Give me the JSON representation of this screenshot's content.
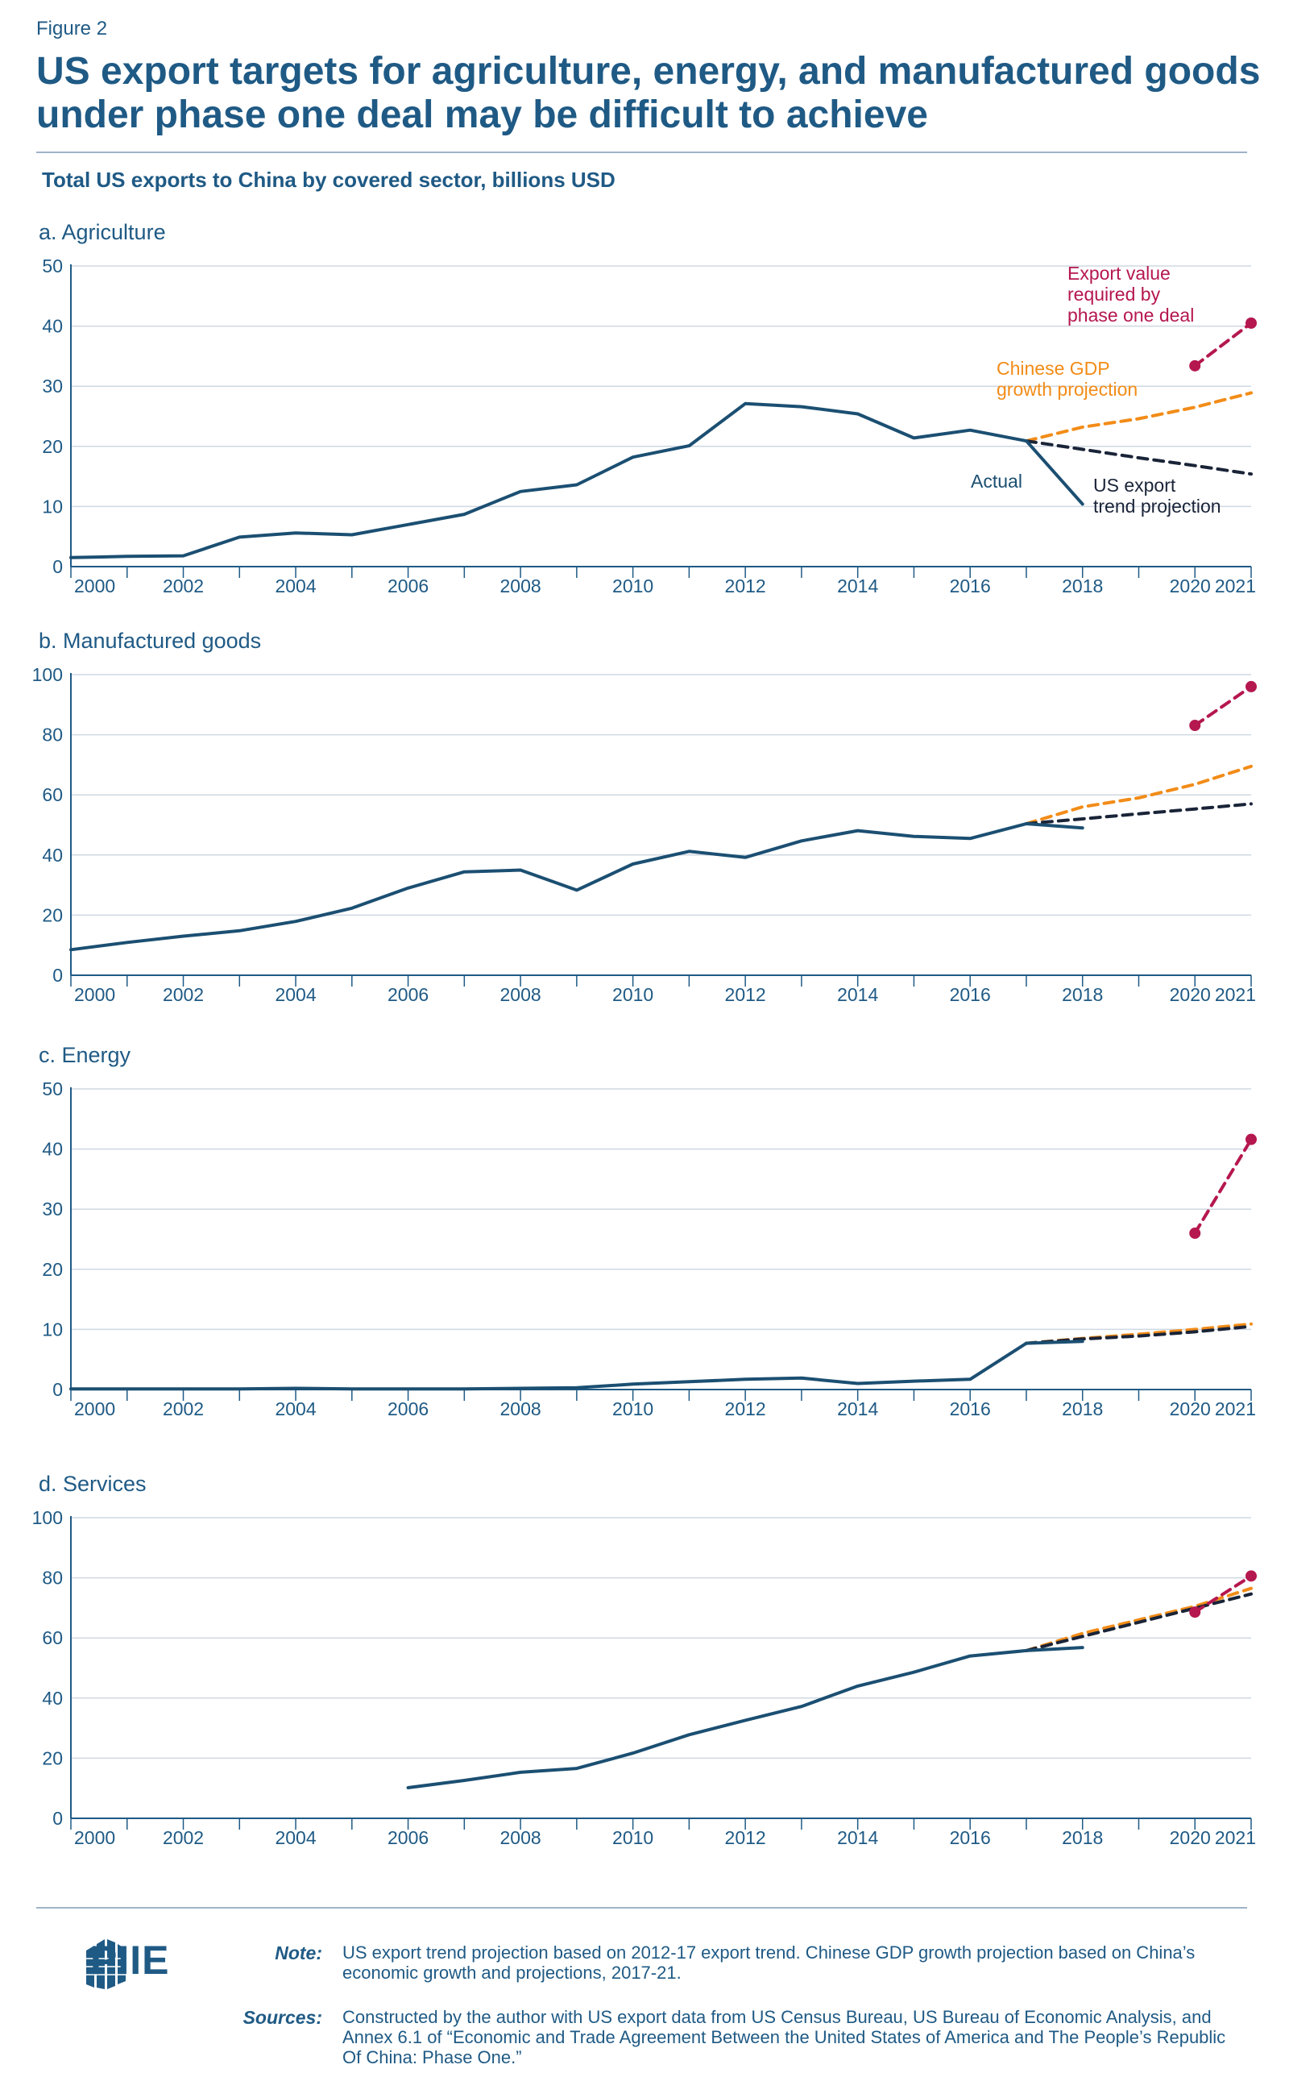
{
  "figure_label": "Figure 2",
  "title": "US export targets for agriculture, energy, and manufactured goods under phase one deal may be difficult to achieve",
  "subtitle": "Total US exports to China by covered sector, billions USD",
  "colors": {
    "actual": "#1b4f72",
    "gdp": "#f28c18",
    "trend": "#1a2438",
    "required": "#b5174f",
    "axis": "#1f5a85",
    "grid": "#cfd8e2"
  },
  "annotations": {
    "required_line1": "Export value",
    "required_line2": "required by",
    "required_line3": "phase one deal",
    "gdp_line1": "Chinese GDP",
    "gdp_line2": "growth projection",
    "actual": "Actual",
    "trend_line1": "US export",
    "trend_line2": "trend projection"
  },
  "chart_data": [
    {
      "type": "line",
      "panel": "a. Agriculture",
      "title": "a. Agriculture",
      "ylim": [
        0,
        50
      ],
      "yticks": [
        0,
        10,
        20,
        30,
        40,
        50
      ],
      "xlim": [
        2000,
        2021
      ],
      "xticks": [
        "2000",
        "2002",
        "2004",
        "2006",
        "2008",
        "2010",
        "2012",
        "2014",
        "2016",
        "2018",
        "2020",
        "2021"
      ],
      "series": [
        {
          "name": "Actual",
          "x": [
            2000,
            2001,
            2002,
            2003,
            2004,
            2005,
            2006,
            2007,
            2008,
            2009,
            2010,
            2011,
            2012,
            2013,
            2014,
            2015,
            2016,
            2017,
            2018
          ],
          "values": [
            1.5,
            1.7,
            1.8,
            4.9,
            5.6,
            5.3,
            7.0,
            8.7,
            12.5,
            13.6,
            18.2,
            20.1,
            27.1,
            26.6,
            25.4,
            21.4,
            22.7,
            20.9,
            10.4
          ]
        },
        {
          "name": "Chinese GDP growth projection",
          "x": [
            2017,
            2018,
            2019,
            2020,
            2021
          ],
          "values": [
            20.9,
            23.2,
            24.6,
            26.5,
            28.9
          ]
        },
        {
          "name": "US export trend projection",
          "x": [
            2017,
            2018,
            2019,
            2020,
            2021
          ],
          "values": [
            20.9,
            19.5,
            18.1,
            16.8,
            15.4
          ]
        },
        {
          "name": "Export value required by phase one deal",
          "x": [
            2020,
            2021
          ],
          "values": [
            33.4,
            40.5
          ]
        }
      ]
    },
    {
      "type": "line",
      "panel": "b. Manufactured goods",
      "title": "b. Manufactured goods",
      "ylim": [
        0,
        100
      ],
      "yticks": [
        0,
        20,
        40,
        60,
        80,
        100
      ],
      "xlim": [
        2000,
        2021
      ],
      "xticks": [
        "2000",
        "2002",
        "2004",
        "2006",
        "2008",
        "2010",
        "2012",
        "2014",
        "2016",
        "2018",
        "2020",
        "2021"
      ],
      "series": [
        {
          "name": "Actual",
          "x": [
            2000,
            2001,
            2002,
            2003,
            2004,
            2005,
            2006,
            2007,
            2008,
            2009,
            2010,
            2011,
            2012,
            2013,
            2014,
            2015,
            2016,
            2017,
            2018
          ],
          "values": [
            8.5,
            10.9,
            13.0,
            14.8,
            17.9,
            22.3,
            29.0,
            34.4,
            35.0,
            28.3,
            37.0,
            41.2,
            39.2,
            44.7,
            48.1,
            46.2,
            45.5,
            50.4,
            49.0
          ]
        },
        {
          "name": "Chinese GDP growth projection",
          "x": [
            2017,
            2018,
            2019,
            2020,
            2021
          ],
          "values": [
            50.4,
            56.0,
            59.0,
            63.5,
            69.5
          ]
        },
        {
          "name": "US export trend projection",
          "x": [
            2017,
            2018,
            2019,
            2020,
            2021
          ],
          "values": [
            50.4,
            52.0,
            53.7,
            55.3,
            57.0
          ]
        },
        {
          "name": "Export value required by phase one deal",
          "x": [
            2020,
            2021
          ],
          "values": [
            83.1,
            96.0
          ]
        }
      ]
    },
    {
      "type": "line",
      "panel": "c. Energy",
      "title": "c. Energy",
      "ylim": [
        0,
        50
      ],
      "yticks": [
        0,
        10,
        20,
        30,
        40,
        50
      ],
      "xlim": [
        2000,
        2021
      ],
      "xticks": [
        "2000",
        "2002",
        "2004",
        "2006",
        "2008",
        "2010",
        "2012",
        "2014",
        "2016",
        "2018",
        "2020",
        "2021"
      ],
      "series": [
        {
          "name": "Actual",
          "x": [
            2000,
            2001,
            2002,
            2003,
            2004,
            2005,
            2006,
            2007,
            2008,
            2009,
            2010,
            2011,
            2012,
            2013,
            2014,
            2015,
            2016,
            2017,
            2018
          ],
          "values": [
            0.1,
            0.1,
            0.1,
            0.1,
            0.2,
            0.1,
            0.1,
            0.1,
            0.2,
            0.3,
            0.9,
            1.3,
            1.7,
            1.9,
            1.0,
            1.4,
            1.7,
            7.7,
            8.0
          ]
        },
        {
          "name": "Chinese GDP growth projection",
          "x": [
            2017,
            2018,
            2019,
            2020,
            2021
          ],
          "values": [
            7.7,
            8.5,
            9.2,
            10.0,
            10.9
          ]
        },
        {
          "name": "US export trend projection",
          "x": [
            2017,
            2018,
            2019,
            2020,
            2021
          ],
          "values": [
            7.7,
            8.4,
            8.9,
            9.6,
            10.5
          ]
        },
        {
          "name": "Export value required by phase one deal",
          "x": [
            2020,
            2021
          ],
          "values": [
            26.0,
            41.6
          ]
        }
      ]
    },
    {
      "type": "line",
      "panel": "d. Services",
      "title": "d. Services",
      "ylim": [
        0,
        100
      ],
      "yticks": [
        0,
        20,
        40,
        60,
        80,
        100
      ],
      "xlim": [
        2000,
        2021
      ],
      "xticks": [
        "2000",
        "2002",
        "2004",
        "2006",
        "2008",
        "2010",
        "2012",
        "2014",
        "2016",
        "2018",
        "2020",
        "2021"
      ],
      "series": [
        {
          "name": "Actual",
          "x": [
            2006,
            2007,
            2008,
            2009,
            2010,
            2011,
            2012,
            2013,
            2014,
            2015,
            2016,
            2017,
            2018
          ],
          "values": [
            10.2,
            12.6,
            15.3,
            16.6,
            21.7,
            27.8,
            32.6,
            37.2,
            44.0,
            48.6,
            54.0,
            55.8,
            56.8
          ]
        },
        {
          "name": "Chinese GDP growth projection",
          "x": [
            2017,
            2018,
            2019,
            2020,
            2021
          ],
          "values": [
            55.8,
            61.5,
            66.0,
            70.5,
            76.5
          ]
        },
        {
          "name": "US export trend projection",
          "x": [
            2017,
            2018,
            2019,
            2020,
            2021
          ],
          "values": [
            55.8,
            60.5,
            65.2,
            69.9,
            74.6
          ]
        },
        {
          "name": "Export value required by phase one deal",
          "x": [
            2020,
            2021
          ],
          "values": [
            68.6,
            80.6
          ]
        }
      ]
    }
  ],
  "footer": {
    "logo": "PIIE",
    "note_label": "Note:",
    "note_text": "US export trend projection based on 2012-17 export trend. Chinese GDP growth projection based on China’s economic growth and projections, 2017-21.",
    "sources_label": "Sources:",
    "sources_text": "Constructed by the author with US export data from US Census Bureau, US Bureau of Economic Analysis, and Annex 6.1 of “Economic and Trade Agreement Between the United States of America and The People’s Republic Of China: Phase One.”"
  }
}
